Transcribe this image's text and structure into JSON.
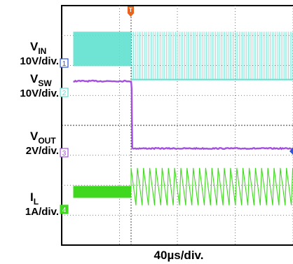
{
  "chart_data": {
    "type": "line",
    "title": "",
    "xlabel": "40µs/div.",
    "time_per_div_us": 40,
    "x_divisions": 10,
    "y_divisions": 8,
    "grid": true,
    "trigger": {
      "marker": "T",
      "time_us": 0,
      "color": "#e8641e"
    },
    "x_range_us": [
      -40,
      128
    ],
    "series": [
      {
        "name": "VIN",
        "name_main": "V",
        "name_sub": "IN",
        "scale": "10V/div.",
        "channel": "1",
        "color": "#2a55d8",
        "points": [
          [
            -40,
            5.3
          ],
          [
            128,
            5.3
          ]
        ]
      },
      {
        "name": "VSW",
        "name_main": "V",
        "name_sub": "SW",
        "scale": "10V/div.",
        "channel": "2",
        "color": "#5fe0cf",
        "switching": {
          "before_us": [
            -40,
            0
          ],
          "after_us": [
            0,
            128
          ],
          "high_div": 3.9,
          "low_div": 2.75,
          "low_after_div": 2.3
        }
      },
      {
        "name": "VOUT",
        "name_main": "V",
        "name_sub": "OUT",
        "scale": "2V/div.",
        "channel": "3",
        "color": "#a34fe0",
        "points": [
          [
            -40,
            2.25
          ],
          [
            0,
            2.25
          ],
          [
            0.4,
            2.0
          ],
          [
            0.8,
            0.0
          ],
          [
            128,
            0.0
          ]
        ]
      },
      {
        "name": "IL",
        "name_main": "I",
        "name_sub": "L",
        "scale": "1A/div.",
        "channel": "4",
        "color": "#3fd81f",
        "ripple": {
          "before_level_div": -1.45,
          "before_ripple_div": 0.2,
          "after_peak_div": -0.65,
          "after_valley_div": -1.9,
          "after_period_us": 4.3
        }
      }
    ]
  }
}
